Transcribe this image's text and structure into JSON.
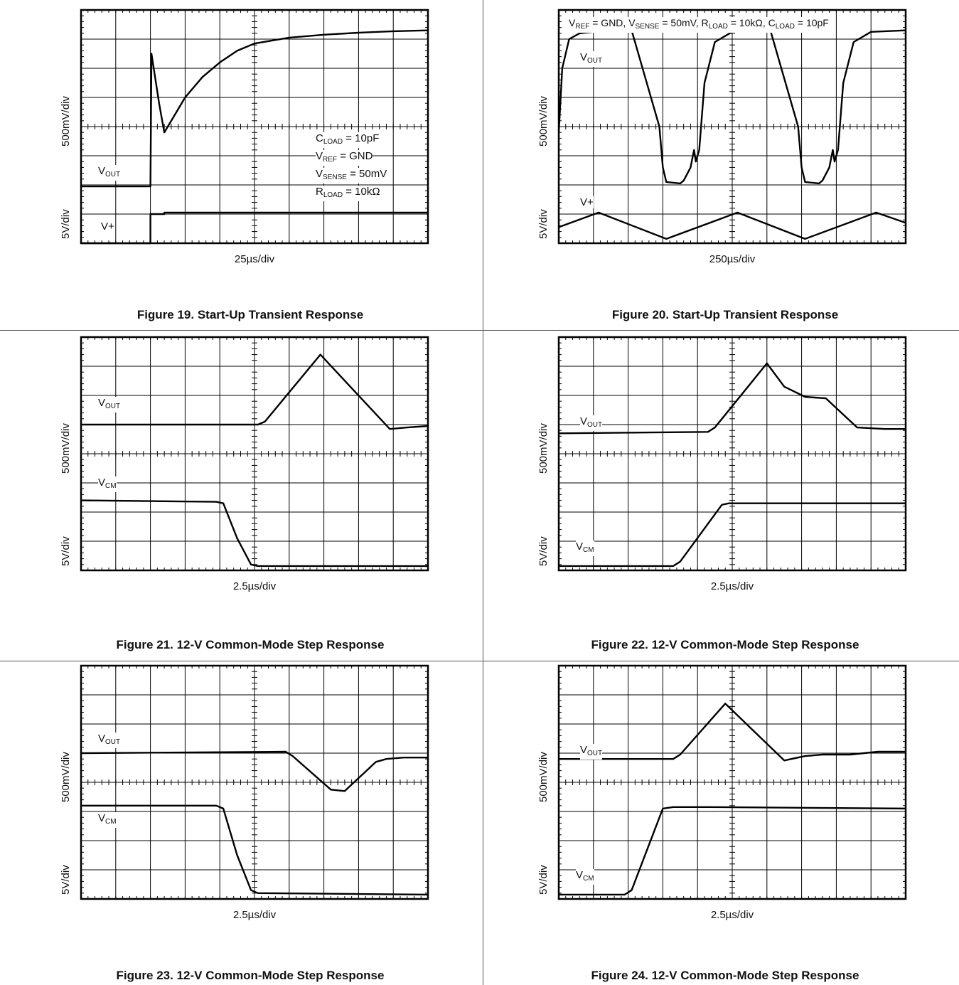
{
  "charts": [
    {
      "id": "fig19",
      "caption": "Figure 19. Start-Up Transient Response",
      "x_scale": "25µs/div",
      "y_scale_upper": "500mV/div",
      "y_scale_lower": "5V/div",
      "labels": {
        "vout": {
          "main": "V",
          "sub": "OUT"
        },
        "vplus": {
          "main": "V+",
          "sub": ""
        }
      },
      "conditions": [
        {
          "main": "C",
          "sub": "LOAD",
          "rest": " = 10pF"
        },
        {
          "main": "V",
          "sub": "REF",
          "rest": " = GND"
        },
        {
          "main": "V",
          "sub": "SENSE",
          "rest": " = 50mV"
        },
        {
          "main": "R",
          "sub": "LOAD",
          "rest": " = 10kΩ"
        }
      ]
    },
    {
      "id": "fig20",
      "caption": "Figure 20. Start-Up Transient Response",
      "x_scale": "250µs/div",
      "y_scale_upper": "500mV/div",
      "y_scale_lower": "5V/div",
      "labels": {
        "vout": {
          "main": "V",
          "sub": "OUT"
        },
        "vplus": {
          "main": "V+",
          "sub": ""
        }
      },
      "condition_line": [
        {
          "main": "V",
          "sub": "REF",
          "rest": " = GND, "
        },
        {
          "main": "V",
          "sub": "SENSE",
          "rest": " = 50mV, "
        },
        {
          "main": "R",
          "sub": "LOAD",
          "rest": " = 10kΩ, "
        },
        {
          "main": "C",
          "sub": "LOAD",
          "rest": " = 10pF"
        }
      ]
    },
    {
      "id": "fig21",
      "caption": "Figure 21. 12-V Common-Mode Step Response",
      "x_scale": "2.5µs/div",
      "y_scale_upper": "500mV/div",
      "y_scale_lower": "5V/div",
      "labels": {
        "vout": {
          "main": "V",
          "sub": "OUT"
        },
        "vcm": {
          "main": "V",
          "sub": "CM"
        }
      }
    },
    {
      "id": "fig22",
      "caption": "Figure 22. 12-V Common-Mode Step Response",
      "x_scale": "2.5µs/div",
      "y_scale_upper": "500mV/div",
      "y_scale_lower": "5V/div",
      "labels": {
        "vout": {
          "main": "V",
          "sub": "OUT"
        },
        "vcm": {
          "main": "V",
          "sub": "CM"
        }
      }
    },
    {
      "id": "fig23",
      "caption": "Figure 23. 12-V Common-Mode Step Response",
      "x_scale": "2.5µs/div",
      "y_scale_upper": "500mV/div",
      "y_scale_lower": "5V/div",
      "labels": {
        "vout": {
          "main": "V",
          "sub": "OUT"
        },
        "vcm": {
          "main": "V",
          "sub": "CM"
        }
      }
    },
    {
      "id": "fig24",
      "caption": "Figure 24. 12-V Common-Mode Step Response",
      "x_scale": "2.5µs/div",
      "y_scale_upper": "500mV/div",
      "y_scale_lower": "5V/div",
      "labels": {
        "vout": {
          "main": "V",
          "sub": "OUT"
        },
        "vcm": {
          "main": "V",
          "sub": "CM"
        }
      }
    }
  ],
  "chart_data": [
    {
      "type": "line",
      "caption": "Figure 19. Start-Up Transient Response",
      "xlabel": "25µs/div",
      "ylabel": "500mV/div",
      "grid": true,
      "xlim": [
        0,
        10
      ],
      "ylim": [
        0,
        8
      ],
      "series": [
        {
          "name": "VOUT",
          "x": [
            0,
            2,
            2,
            2.03,
            2.25,
            2.4,
            2.7,
            3,
            3.5,
            4,
            4.5,
            5,
            6,
            7,
            8,
            9,
            10
          ],
          "y": [
            1.95,
            1.95,
            1.95,
            6.5,
            4.8,
            3.8,
            4.4,
            5.0,
            5.7,
            6.2,
            6.6,
            6.85,
            7.05,
            7.15,
            7.22,
            7.27,
            7.3
          ]
        },
        {
          "name": "V+",
          "x": [
            0,
            2,
            2,
            2.4,
            2.4,
            10
          ],
          "y": [
            0.0,
            0.0,
            1.0,
            1.0,
            1.05,
            1.05
          ]
        }
      ]
    },
    {
      "type": "line",
      "caption": "Figure 20. Start-Up Transient Response",
      "xlabel": "250µs/div",
      "ylabel": "500mV/div",
      "grid": true,
      "xlim": [
        0,
        10
      ],
      "ylim": [
        0,
        8
      ],
      "series": [
        {
          "name": "VOUT",
          "x": [
            0,
            0.1,
            0.3,
            0.6,
            1,
            1.5,
            2,
            2.1,
            2.9,
            3,
            3.1,
            3.5,
            3.6,
            3.8,
            3.9,
            3.95,
            4.05,
            4.2,
            4.5,
            5,
            6,
            6.1,
            6.9,
            7,
            7.1,
            7.5,
            7.6,
            7.8,
            7.9,
            7.95,
            8.05,
            8.2,
            8.5,
            9,
            10
          ],
          "y": [
            3.8,
            6.0,
            7.0,
            7.2,
            7.25,
            7.3,
            7.3,
            7.3,
            4.0,
            2.6,
            2.1,
            2.05,
            2.15,
            2.6,
            3.2,
            2.8,
            3.2,
            5.5,
            6.9,
            7.25,
            7.3,
            7.3,
            4.0,
            2.6,
            2.1,
            2.05,
            2.15,
            2.6,
            3.2,
            2.8,
            3.2,
            5.5,
            6.9,
            7.25,
            7.3
          ]
        },
        {
          "name": "V+",
          "x": [
            0,
            1.15,
            3.1,
            5.15,
            7.1,
            9.15,
            10
          ],
          "y": [
            0.55,
            1.05,
            0.15,
            1.05,
            0.15,
            1.05,
            0.7
          ]
        }
      ]
    },
    {
      "type": "line",
      "caption": "Figure 21. 12-V Common-Mode Step Response",
      "xlabel": "2.5µs/div",
      "ylabel": "500mV/div",
      "grid": true,
      "xlim": [
        0,
        10
      ],
      "ylim": [
        0,
        8
      ],
      "series": [
        {
          "name": "VOUT",
          "x": [
            0,
            5.1,
            5.3,
            6.9,
            8.9,
            9.4,
            10
          ],
          "y": [
            5.0,
            5.0,
            5.1,
            7.4,
            4.85,
            4.9,
            4.95
          ]
        },
        {
          "name": "VCM",
          "x": [
            0,
            3.9,
            4.1,
            4.5,
            4.9,
            5.1,
            10
          ],
          "y": [
            2.4,
            2.35,
            2.3,
            1.1,
            0.2,
            0.15,
            0.15
          ]
        }
      ]
    },
    {
      "type": "line",
      "caption": "Figure 22. 12-V Common-Mode Step Response",
      "xlabel": "2.5µs/div",
      "ylabel": "500mV/div",
      "grid": true,
      "xlim": [
        0,
        10
      ],
      "ylim": [
        0,
        8
      ],
      "series": [
        {
          "name": "VOUT",
          "x": [
            0,
            4.3,
            4.5,
            6.0,
            6.5,
            7.1,
            7.7,
            8.6,
            9.4,
            10
          ],
          "y": [
            4.7,
            4.75,
            4.9,
            7.1,
            6.3,
            5.95,
            5.9,
            4.9,
            4.85,
            4.85
          ]
        },
        {
          "name": "VCM",
          "x": [
            0,
            3.3,
            3.5,
            4.7,
            4.9,
            10
          ],
          "y": [
            0.15,
            0.15,
            0.3,
            2.25,
            2.3,
            2.3
          ]
        }
      ]
    },
    {
      "type": "line",
      "caption": "Figure 23. 12-V Common-Mode Step Response",
      "xlabel": "2.5µs/div",
      "ylabel": "500mV/div",
      "grid": true,
      "xlim": [
        0,
        10
      ],
      "ylim": [
        0,
        8
      ],
      "series": [
        {
          "name": "VOUT",
          "x": [
            0,
            5.9,
            6.1,
            7.2,
            7.6,
            8.5,
            8.8,
            9.3,
            10
          ],
          "y": [
            5.0,
            5.05,
            4.9,
            3.75,
            3.7,
            4.7,
            4.8,
            4.85,
            4.85
          ]
        },
        {
          "name": "VCM",
          "x": [
            0,
            3.9,
            4.1,
            4.5,
            4.9,
            5.1,
            10
          ],
          "y": [
            3.2,
            3.2,
            3.1,
            1.5,
            0.3,
            0.2,
            0.15
          ]
        }
      ]
    },
    {
      "type": "line",
      "caption": "Figure 24. 12-V Common-Mode Step Response",
      "xlabel": "2.5µs/div",
      "ylabel": "500mV/div",
      "grid": true,
      "xlim": [
        0,
        10
      ],
      "ylim": [
        0,
        8
      ],
      "series": [
        {
          "name": "VOUT",
          "x": [
            0,
            3.3,
            3.5,
            4.8,
            6.5,
            7.1,
            7.6,
            8.4,
            9.2,
            10
          ],
          "y": [
            4.8,
            4.8,
            4.95,
            6.7,
            4.75,
            4.9,
            4.95,
            4.95,
            5.05,
            5.05
          ]
        },
        {
          "name": "VCM",
          "x": [
            0,
            1.9,
            2.1,
            3.0,
            3.3,
            4.3,
            10
          ],
          "y": [
            0.15,
            0.15,
            0.3,
            3.1,
            3.15,
            3.15,
            3.1
          ]
        }
      ]
    }
  ]
}
